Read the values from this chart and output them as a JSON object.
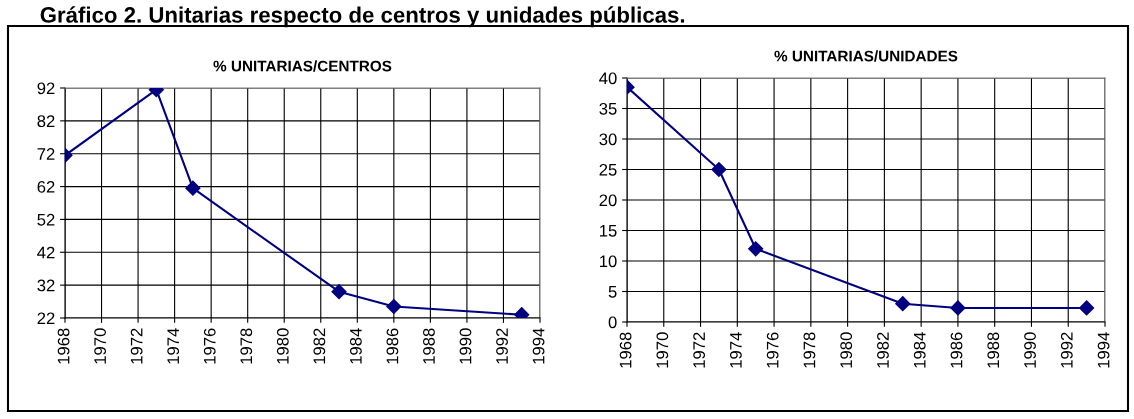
{
  "chart_data": [
    {
      "type": "line",
      "title": "% UNITARIAS/CENTROS",
      "annotations": [
        "Gráfico 2. Unitarias respecto de centros y unidades públicas."
      ],
      "x": [
        1968,
        1973,
        1975,
        1983,
        1986,
        1993
      ],
      "series": [
        {
          "color": "#000080",
          "values": [
            71.5,
            91.5,
            61.5,
            30,
            25.5,
            23
          ]
        }
      ],
      "xlim": [
        1968,
        1994
      ],
      "xticks": [
        1968,
        1970,
        1972,
        1974,
        1976,
        1978,
        1980,
        1982,
        1984,
        1986,
        1988,
        1990,
        1992,
        1994
      ],
      "ylim": [
        22,
        92
      ],
      "yticks": [
        22,
        32,
        42,
        52,
        62,
        72,
        82,
        92
      ],
      "grid": true,
      "marker": "diamond",
      "line_style": "solid"
    },
    {
      "type": "line",
      "title": "% UNITARIAS/UNIDADES",
      "x": [
        1968,
        1973,
        1975,
        1983,
        1986,
        1993
      ],
      "series": [
        {
          "color": "#000080",
          "values": [
            38.5,
            25,
            12,
            3,
            2.3,
            2.3
          ]
        }
      ],
      "xlim": [
        1968,
        1994
      ],
      "xticks": [
        1968,
        1970,
        1972,
        1974,
        1976,
        1978,
        1980,
        1982,
        1984,
        1986,
        1988,
        1990,
        1992,
        1994
      ],
      "ylim": [
        0,
        40
      ],
      "yticks": [
        0,
        5,
        10,
        15,
        20,
        25,
        30,
        35,
        40
      ],
      "grid": true,
      "marker": "diamond",
      "line_style": "solid"
    }
  ]
}
